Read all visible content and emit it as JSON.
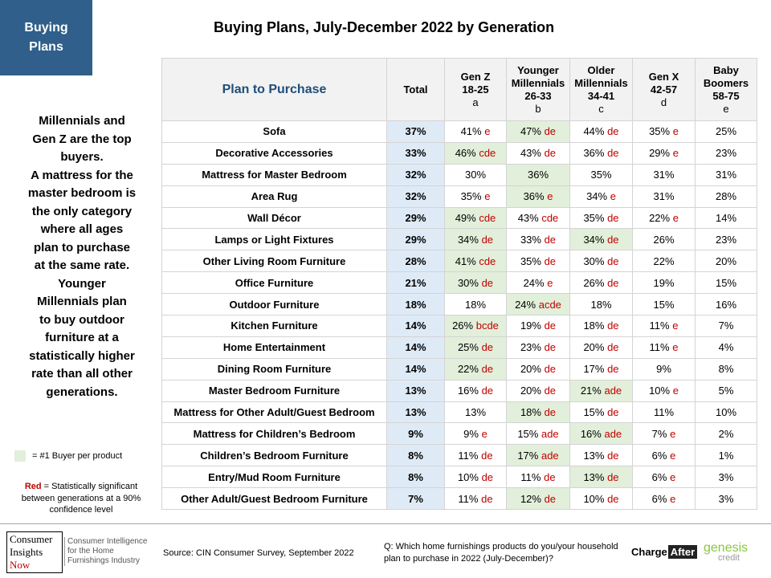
{
  "badge": {
    "line1": "Buying",
    "line2": "Plans"
  },
  "title": "Buying Plans, July-December 2022 by Generation",
  "side_text": [
    "Millennials and",
    "Gen Z  are the top",
    "buyers.",
    "A mattress for the",
    "master bedroom is",
    "the only category",
    "where all ages",
    "plan to purchase",
    "at the same rate.",
    "Younger",
    "Millennials plan",
    "to buy outdoor",
    "furniture at a",
    "statistically higher",
    "rate than all other",
    "generations."
  ],
  "legend": {
    "green_label": "= #1 Buyer per product",
    "red_word": "Red",
    "red_rest": " = Statistically significant between  generations at a 90% confidence level",
    "green_color": "#e2efda",
    "red_color": "#c00000"
  },
  "table": {
    "headers": {
      "plan": "Plan to Purchase",
      "total": "Total",
      "genz": [
        "Gen Z",
        "18-25",
        "a"
      ],
      "younger": [
        "Younger",
        "Millennials",
        "26-33",
        "b"
      ],
      "older": [
        "Older",
        "Millennials",
        "34-41",
        "c"
      ],
      "genx": [
        "Gen X",
        "42-57",
        "d"
      ],
      "boomers": [
        "Baby",
        "Boomers",
        "58-75",
        "e"
      ]
    },
    "rows": [
      {
        "product": "Sofa",
        "total": "37%",
        "cells": [
          [
            "41%",
            " e"
          ],
          [
            "47%",
            " de"
          ],
          [
            "44%",
            " de"
          ],
          [
            "35%",
            " e"
          ],
          [
            "25%",
            ""
          ]
        ],
        "top": 1,
        "dash": false
      },
      {
        "product": "Decorative Accessories",
        "total": "33%",
        "cells": [
          [
            "46%",
            " cde"
          ],
          [
            "43%",
            " de"
          ],
          [
            "36%",
            " de"
          ],
          [
            "29%",
            " e"
          ],
          [
            "23%",
            ""
          ]
        ],
        "top": 0,
        "dash": false
      },
      {
        "product": "Mattress for Master Bedroom",
        "total": "32%",
        "cells": [
          [
            "30%",
            ""
          ],
          [
            "36%",
            ""
          ],
          [
            "35%",
            ""
          ],
          [
            "31%",
            ""
          ],
          [
            "31%",
            ""
          ]
        ],
        "top": 1,
        "dash": false
      },
      {
        "product": "Area Rug",
        "total": "32%",
        "cells": [
          [
            "35%",
            " e"
          ],
          [
            "36%",
            " e"
          ],
          [
            "34%",
            " e"
          ],
          [
            "31%",
            ""
          ],
          [
            "28%",
            ""
          ]
        ],
        "top": 1,
        "dash": true
      },
      {
        "product": "Wall Décor",
        "total": "29%",
        "cells": [
          [
            "49%",
            " cde"
          ],
          [
            "43%",
            " cde"
          ],
          [
            "35%",
            " de"
          ],
          [
            "22%",
            " e"
          ],
          [
            "14%",
            ""
          ]
        ],
        "top": 0,
        "dash": false
      },
      {
        "product": "Lamps or Light Fixtures",
        "total": "29%",
        "cells": [
          [
            "34%",
            " de"
          ],
          [
            "33%",
            " de"
          ],
          [
            "34%",
            " de"
          ],
          [
            "26%",
            ""
          ],
          [
            "23%",
            ""
          ]
        ],
        "top": [
          0,
          2
        ],
        "dash": false
      },
      {
        "product": "Other Living Room Furniture",
        "total": "28%",
        "cells": [
          [
            "41%",
            " cde"
          ],
          [
            "35%",
            " de"
          ],
          [
            "30%",
            " de"
          ],
          [
            "22%",
            ""
          ],
          [
            "20%",
            ""
          ]
        ],
        "top": 0,
        "dash": false
      },
      {
        "product": "Office Furniture",
        "total": "21%",
        "cells": [
          [
            "30%",
            " de"
          ],
          [
            "24%",
            " e"
          ],
          [
            "26%",
            " de"
          ],
          [
            "19%",
            ""
          ],
          [
            "15%",
            ""
          ]
        ],
        "top": 0,
        "dash": true
      },
      {
        "product": "Outdoor Furniture",
        "total": "18%",
        "cells": [
          [
            "18%",
            ""
          ],
          [
            "24%",
            " acde"
          ],
          [
            "18%",
            ""
          ],
          [
            "15%",
            ""
          ],
          [
            "16%",
            ""
          ]
        ],
        "top": 1,
        "dash": false
      },
      {
        "product": "Kitchen Furniture",
        "total": "14%",
        "cells": [
          [
            "26%",
            " bcde"
          ],
          [
            "19%",
            " de"
          ],
          [
            "18%",
            " de"
          ],
          [
            "11%",
            " e"
          ],
          [
            "7%",
            ""
          ]
        ],
        "top": 0,
        "dash": false
      },
      {
        "product": "Home Entertainment",
        "total": "14%",
        "cells": [
          [
            "25%",
            " de"
          ],
          [
            "23%",
            " de"
          ],
          [
            "20%",
            " de"
          ],
          [
            "11%",
            " e"
          ],
          [
            "4%",
            ""
          ]
        ],
        "top": 0,
        "dash": false
      },
      {
        "product": "Dining Room Furniture",
        "total": "14%",
        "cells": [
          [
            "22%",
            " de"
          ],
          [
            "20%",
            " de"
          ],
          [
            "17%",
            " de"
          ],
          [
            "9%",
            ""
          ],
          [
            "8%",
            ""
          ]
        ],
        "top": 0,
        "dash": false
      },
      {
        "product": "Master Bedroom Furniture",
        "total": "13%",
        "cells": [
          [
            "16%",
            " de"
          ],
          [
            "20%",
            " de"
          ],
          [
            "21%",
            " ade"
          ],
          [
            "10%",
            " e"
          ],
          [
            "5%",
            ""
          ]
        ],
        "top": 2,
        "dash": false
      },
      {
        "product": "Mattress for Other Adult/Guest Bedroom",
        "total": "13%",
        "cells": [
          [
            "13%",
            ""
          ],
          [
            "18%",
            " de"
          ],
          [
            "15%",
            " de"
          ],
          [
            "11%",
            ""
          ],
          [
            "10%",
            ""
          ]
        ],
        "top": 1,
        "dash": false
      },
      {
        "product": "Mattress for Children’s Bedroom",
        "total": "9%",
        "cells": [
          [
            "9%",
            " e"
          ],
          [
            "15%",
            " ade"
          ],
          [
            "16%",
            " ade"
          ],
          [
            "7%",
            " e"
          ],
          [
            "2%",
            ""
          ]
        ],
        "top": 2,
        "dash": true
      },
      {
        "product": "Children’s Bedroom Furniture",
        "total": "8%",
        "cells": [
          [
            "11%",
            " de"
          ],
          [
            "17%",
            " ade"
          ],
          [
            "13%",
            " de"
          ],
          [
            "6%",
            " e"
          ],
          [
            "1%",
            ""
          ]
        ],
        "top": 1,
        "dash": false
      },
      {
        "product": "Entry/Mud Room Furniture",
        "total": "8%",
        "cells": [
          [
            "10%",
            " de"
          ],
          [
            "11%",
            " de"
          ],
          [
            "13%",
            " de"
          ],
          [
            "6%",
            " e"
          ],
          [
            "3%",
            ""
          ]
        ],
        "top": 2,
        "dash": false
      },
      {
        "product": "Other Adult/Guest Bedroom Furniture",
        "total": "7%",
        "cells": [
          [
            "11%",
            " de"
          ],
          [
            "12%",
            " de"
          ],
          [
            "10%",
            " de"
          ],
          [
            "6%",
            " e"
          ],
          [
            "3%",
            ""
          ]
        ],
        "top": 1,
        "dash": false
      }
    ]
  },
  "footer": {
    "logo_lines": [
      "Consumer",
      "Insights",
      "Now"
    ],
    "logo_tagline": "Consumer Intelligence for the Home Furnishings Industry",
    "source": "Source: CIN Consumer Survey, September  2022",
    "question": "Q: Which home furnishings products do you/your household plan to purchase in 2022 (July-December)?",
    "chargeafter_charge": "Charge",
    "chargeafter_after": "After",
    "genesis": "genesis",
    "genesis_credit": "credit"
  }
}
